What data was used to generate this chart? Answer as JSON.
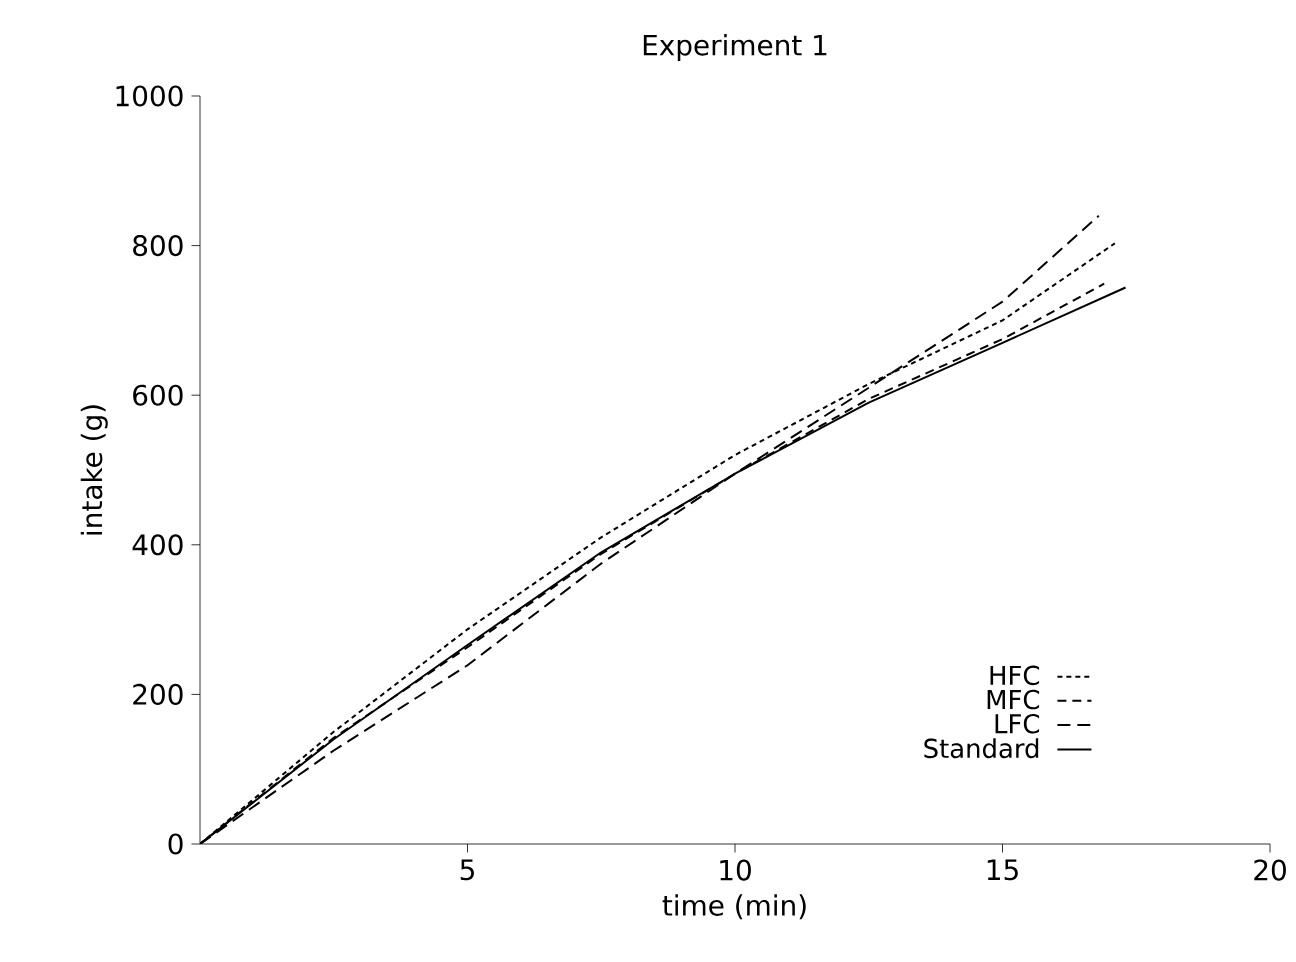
{
  "chart_data": {
    "type": "line",
    "title": "Experiment 1",
    "xlabel": "time (min)",
    "ylabel": "intake (g)",
    "xlim": [
      0,
      20
    ],
    "ylim": [
      0,
      1000
    ],
    "xticks": [
      5,
      10,
      15,
      20
    ],
    "yticks": [
      0,
      200,
      400,
      600,
      800,
      1000
    ],
    "legend": "bottom right",
    "grid": false,
    "marker": "none",
    "series": [
      {
        "name": "HFC",
        "color": "#000000",
        "line_style": "dashed",
        "x": [
          0,
          2.5,
          5,
          7.5,
          10,
          12.5,
          15,
          17.1
        ],
        "values": [
          0,
          150,
          287,
          410,
          520,
          615,
          700,
          803
        ]
      },
      {
        "name": "MFC",
        "color": "#000000",
        "line_style": "dashed",
        "x": [
          0,
          2.5,
          5,
          7.5,
          10,
          12.5,
          15,
          16.9
        ],
        "values": [
          0,
          142,
          263,
          388,
          495,
          595,
          675,
          749
        ]
      },
      {
        "name": "LFC",
        "color": "#000000",
        "line_style": "dashed",
        "x": [
          0,
          2.5,
          5,
          7.5,
          10,
          12.5,
          15,
          16.8
        ],
        "values": [
          0,
          125,
          239,
          375,
          495,
          610,
          725,
          840
        ]
      },
      {
        "name": "Standard",
        "color": "#000000",
        "line_style": "solid",
        "x": [
          0,
          2.5,
          5,
          7.5,
          10,
          12.5,
          15,
          17.3
        ],
        "values": [
          0,
          140,
          266,
          390,
          495,
          590,
          670,
          744
        ]
      }
    ]
  }
}
